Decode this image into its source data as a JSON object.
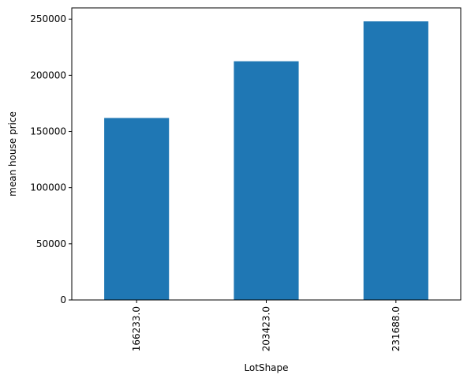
{
  "chart_data": {
    "type": "bar",
    "title": "",
    "xlabel": "LotShape",
    "ylabel": "mean house price",
    "categories": [
      "166233.0",
      "203423.0",
      "231688.0"
    ],
    "values": [
      162000,
      212500,
      248000
    ],
    "ylim": [
      0,
      260000
    ],
    "yticks": [
      0,
      50000,
      100000,
      150000,
      200000,
      250000
    ],
    "ytick_labels": [
      "0",
      "50000",
      "100000",
      "150000",
      "200000",
      "250000"
    ],
    "bar_color": "#1f77b4",
    "grid": false,
    "legend": false
  }
}
